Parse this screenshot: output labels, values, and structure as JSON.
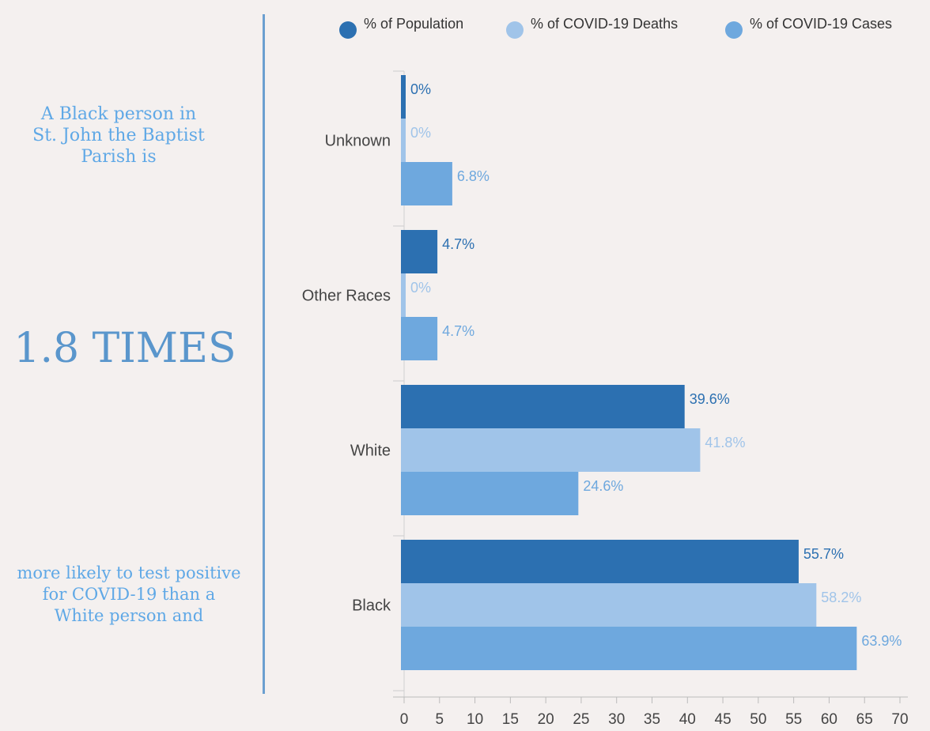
{
  "side_panel": {
    "intro": "A Black person in\nSt. John the Baptist\nParish is",
    "stat": "1.8 TIMES",
    "outro": "more likely to test positive\nfor COVID-19 than a\nWhite person and"
  },
  "chart_data": {
    "type": "bar",
    "orientation": "horizontal",
    "categories": [
      "Unknown",
      "Other Races",
      "White",
      "Black"
    ],
    "series": [
      {
        "name": "% of Population",
        "color": "#2c70b1",
        "values": [
          0,
          4.7,
          39.6,
          55.7
        ],
        "labels": [
          "0%",
          "4.7%",
          "39.6%",
          "55.7%"
        ]
      },
      {
        "name": "% of COVID-19 Deaths",
        "color": "#a0c4e9",
        "values": [
          0,
          0,
          41.8,
          58.2
        ],
        "labels": [
          "0%",
          "0%",
          "41.8%",
          "58.2%"
        ]
      },
      {
        "name": "% of COVID-19 Cases",
        "color": "#6ea8de",
        "values": [
          6.8,
          4.7,
          24.6,
          63.9
        ],
        "labels": [
          "6.8%",
          "4.7%",
          "24.6%",
          "63.9%"
        ]
      }
    ],
    "xlim": [
      0,
      70
    ],
    "xticks": [
      0,
      5,
      10,
      15,
      20,
      25,
      30,
      35,
      40,
      45,
      50,
      55,
      60,
      65,
      70
    ],
    "legend_position": "top",
    "grid": false
  }
}
